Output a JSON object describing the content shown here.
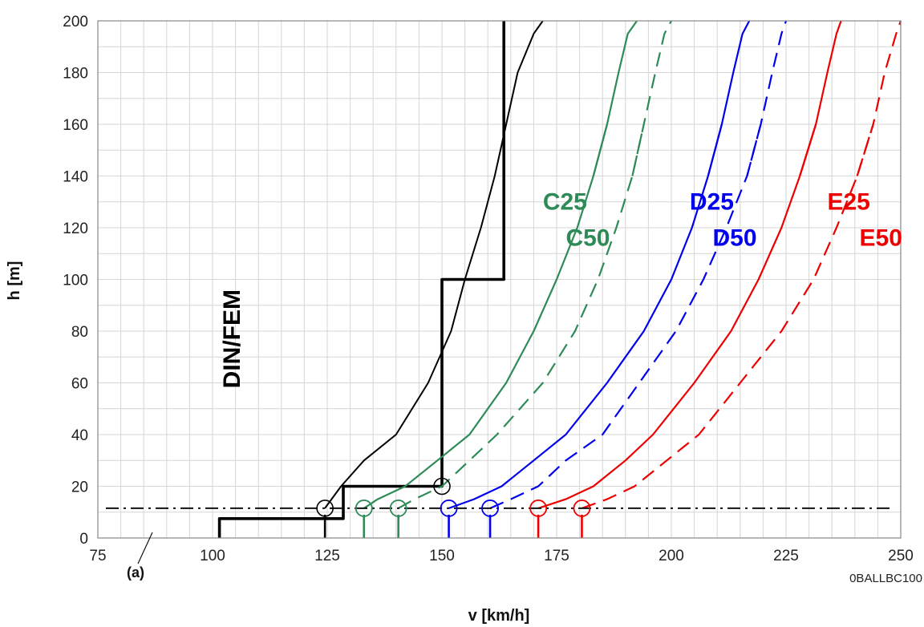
{
  "chart_data": {
    "type": "line",
    "title": "",
    "xlabel": "v [km/h]",
    "ylabel": "h [m]",
    "xlim": [
      75,
      250
    ],
    "ylim": [
      0,
      200
    ],
    "xticks": [
      75,
      100,
      125,
      150,
      175,
      200,
      225,
      250
    ],
    "yticks": [
      0,
      20,
      40,
      60,
      80,
      100,
      120,
      140,
      160,
      180,
      200
    ],
    "grid": true,
    "reference_line": {
      "y": 11.5,
      "label": "(a)"
    },
    "figure_code": "0BALLBC100",
    "colors": {
      "black": "#000000",
      "green": "#2e8b57",
      "blue": "#0000ee",
      "red": "#ee0000"
    },
    "series": [
      {
        "name": "DIN/FEM",
        "style": "step",
        "color": "#000000",
        "x": [
          101.5,
          101.5,
          128.5,
          128.5,
          150,
          150,
          163.5,
          163.5
        ],
        "y": [
          0,
          7.5,
          7.5,
          20,
          20,
          100,
          100,
          200
        ],
        "label_pos": [
          100,
          77
        ]
      },
      {
        "name": "",
        "style": "solid-thin",
        "color": "#000000",
        "x": [
          124.5,
          128,
          133,
          140,
          147,
          152,
          155,
          158.5,
          161.5,
          164,
          166.5,
          170,
          172
        ],
        "y": [
          11.5,
          20,
          30,
          40,
          60,
          80,
          100,
          120,
          140,
          160,
          180,
          195,
          203
        ],
        "marker": [
          124.5,
          11.5
        ],
        "stem": [
          124.5,
          0,
          11.5
        ],
        "marker2": [
          150,
          20
        ]
      },
      {
        "name": "C25",
        "style": "solid",
        "color": "#2e8b57",
        "x": [
          133,
          136,
          142,
          149,
          156,
          164,
          170,
          175,
          179.5,
          183,
          186
        ],
        "y": [
          11.5,
          15,
          20,
          30,
          40,
          60,
          80,
          100,
          120,
          140,
          160
        ],
        "x2": [
          183,
          186,
          188.5,
          190.5,
          192.5
        ],
        "y2": [
          140,
          160,
          180,
          195,
          203
        ],
        "label_pos": [
          172,
          127
        ]
      },
      {
        "name": "C50",
        "style": "dashed",
        "color": "#2e8b57",
        "x": [
          140.5,
          144,
          150,
          156,
          162,
          172,
          179,
          184,
          188,
          191.5,
          194
        ],
        "y": [
          11.5,
          15,
          20,
          30,
          40,
          60,
          80,
          100,
          120,
          140,
          160
        ],
        "x2": [
          191.5,
          194,
          196.5,
          198.5,
          200
        ],
        "y2": [
          140,
          160,
          180,
          195,
          203
        ],
        "label_pos": [
          177,
          113
        ]
      },
      {
        "name": "D25",
        "style": "solid",
        "color": "#0000ee",
        "x": [
          151.5,
          157,
          163,
          170,
          177,
          186,
          194,
          200,
          204.5,
          208,
          211
        ],
        "y": [
          11.5,
          15,
          20,
          30,
          40,
          60,
          80,
          100,
          120,
          140,
          160
        ],
        "x2": [
          208,
          211,
          213.5,
          215.5,
          217
        ],
        "y2": [
          140,
          160,
          180,
          195,
          203
        ],
        "label_pos": [
          204,
          127
        ]
      },
      {
        "name": "D50",
        "style": "dashed",
        "color": "#0000ee",
        "x": [
          160.5,
          165,
          171,
          177,
          185,
          193,
          201,
          207,
          212,
          216.5,
          219.5
        ],
        "y": [
          11.5,
          15,
          20,
          30,
          40,
          60,
          80,
          100,
          120,
          140,
          160
        ],
        "x2": [
          216.5,
          219.5,
          222,
          224,
          225
        ],
        "y2": [
          140,
          160,
          180,
          195,
          203
        ],
        "label_pos": [
          209,
          113
        ]
      },
      {
        "name": "E25",
        "style": "solid",
        "color": "#ee0000",
        "x": [
          171,
          177,
          183,
          190,
          196,
          205,
          213,
          219,
          224,
          228,
          231.5
        ],
        "y": [
          11.5,
          15,
          20,
          30,
          40,
          60,
          80,
          100,
          120,
          140,
          160
        ],
        "x2": [
          228,
          231.5,
          234,
          236,
          237
        ],
        "y2": [
          140,
          160,
          180,
          195,
          203
        ],
        "label_pos": [
          234,
          127
        ]
      },
      {
        "name": "E50",
        "style": "dashed",
        "color": "#ee0000",
        "x": [
          180.5,
          186,
          192,
          199,
          206,
          215,
          224,
          231,
          236,
          240.5,
          244
        ],
        "y": [
          11.5,
          15,
          20,
          30,
          40,
          60,
          80,
          100,
          120,
          140,
          160
        ],
        "x2": [
          240.5,
          244,
          246.5,
          249,
          250
        ],
        "y2": [
          140,
          160,
          180,
          195,
          203
        ],
        "label_pos": [
          241,
          113
        ]
      }
    ],
    "markers": [
      {
        "x": 133,
        "color": "#2e8b57"
      },
      {
        "x": 140.5,
        "color": "#2e8b57"
      },
      {
        "x": 151.5,
        "color": "#0000ee"
      },
      {
        "x": 160.5,
        "color": "#0000ee"
      },
      {
        "x": 171,
        "color": "#ee0000"
      },
      {
        "x": 180.5,
        "color": "#ee0000"
      }
    ]
  }
}
